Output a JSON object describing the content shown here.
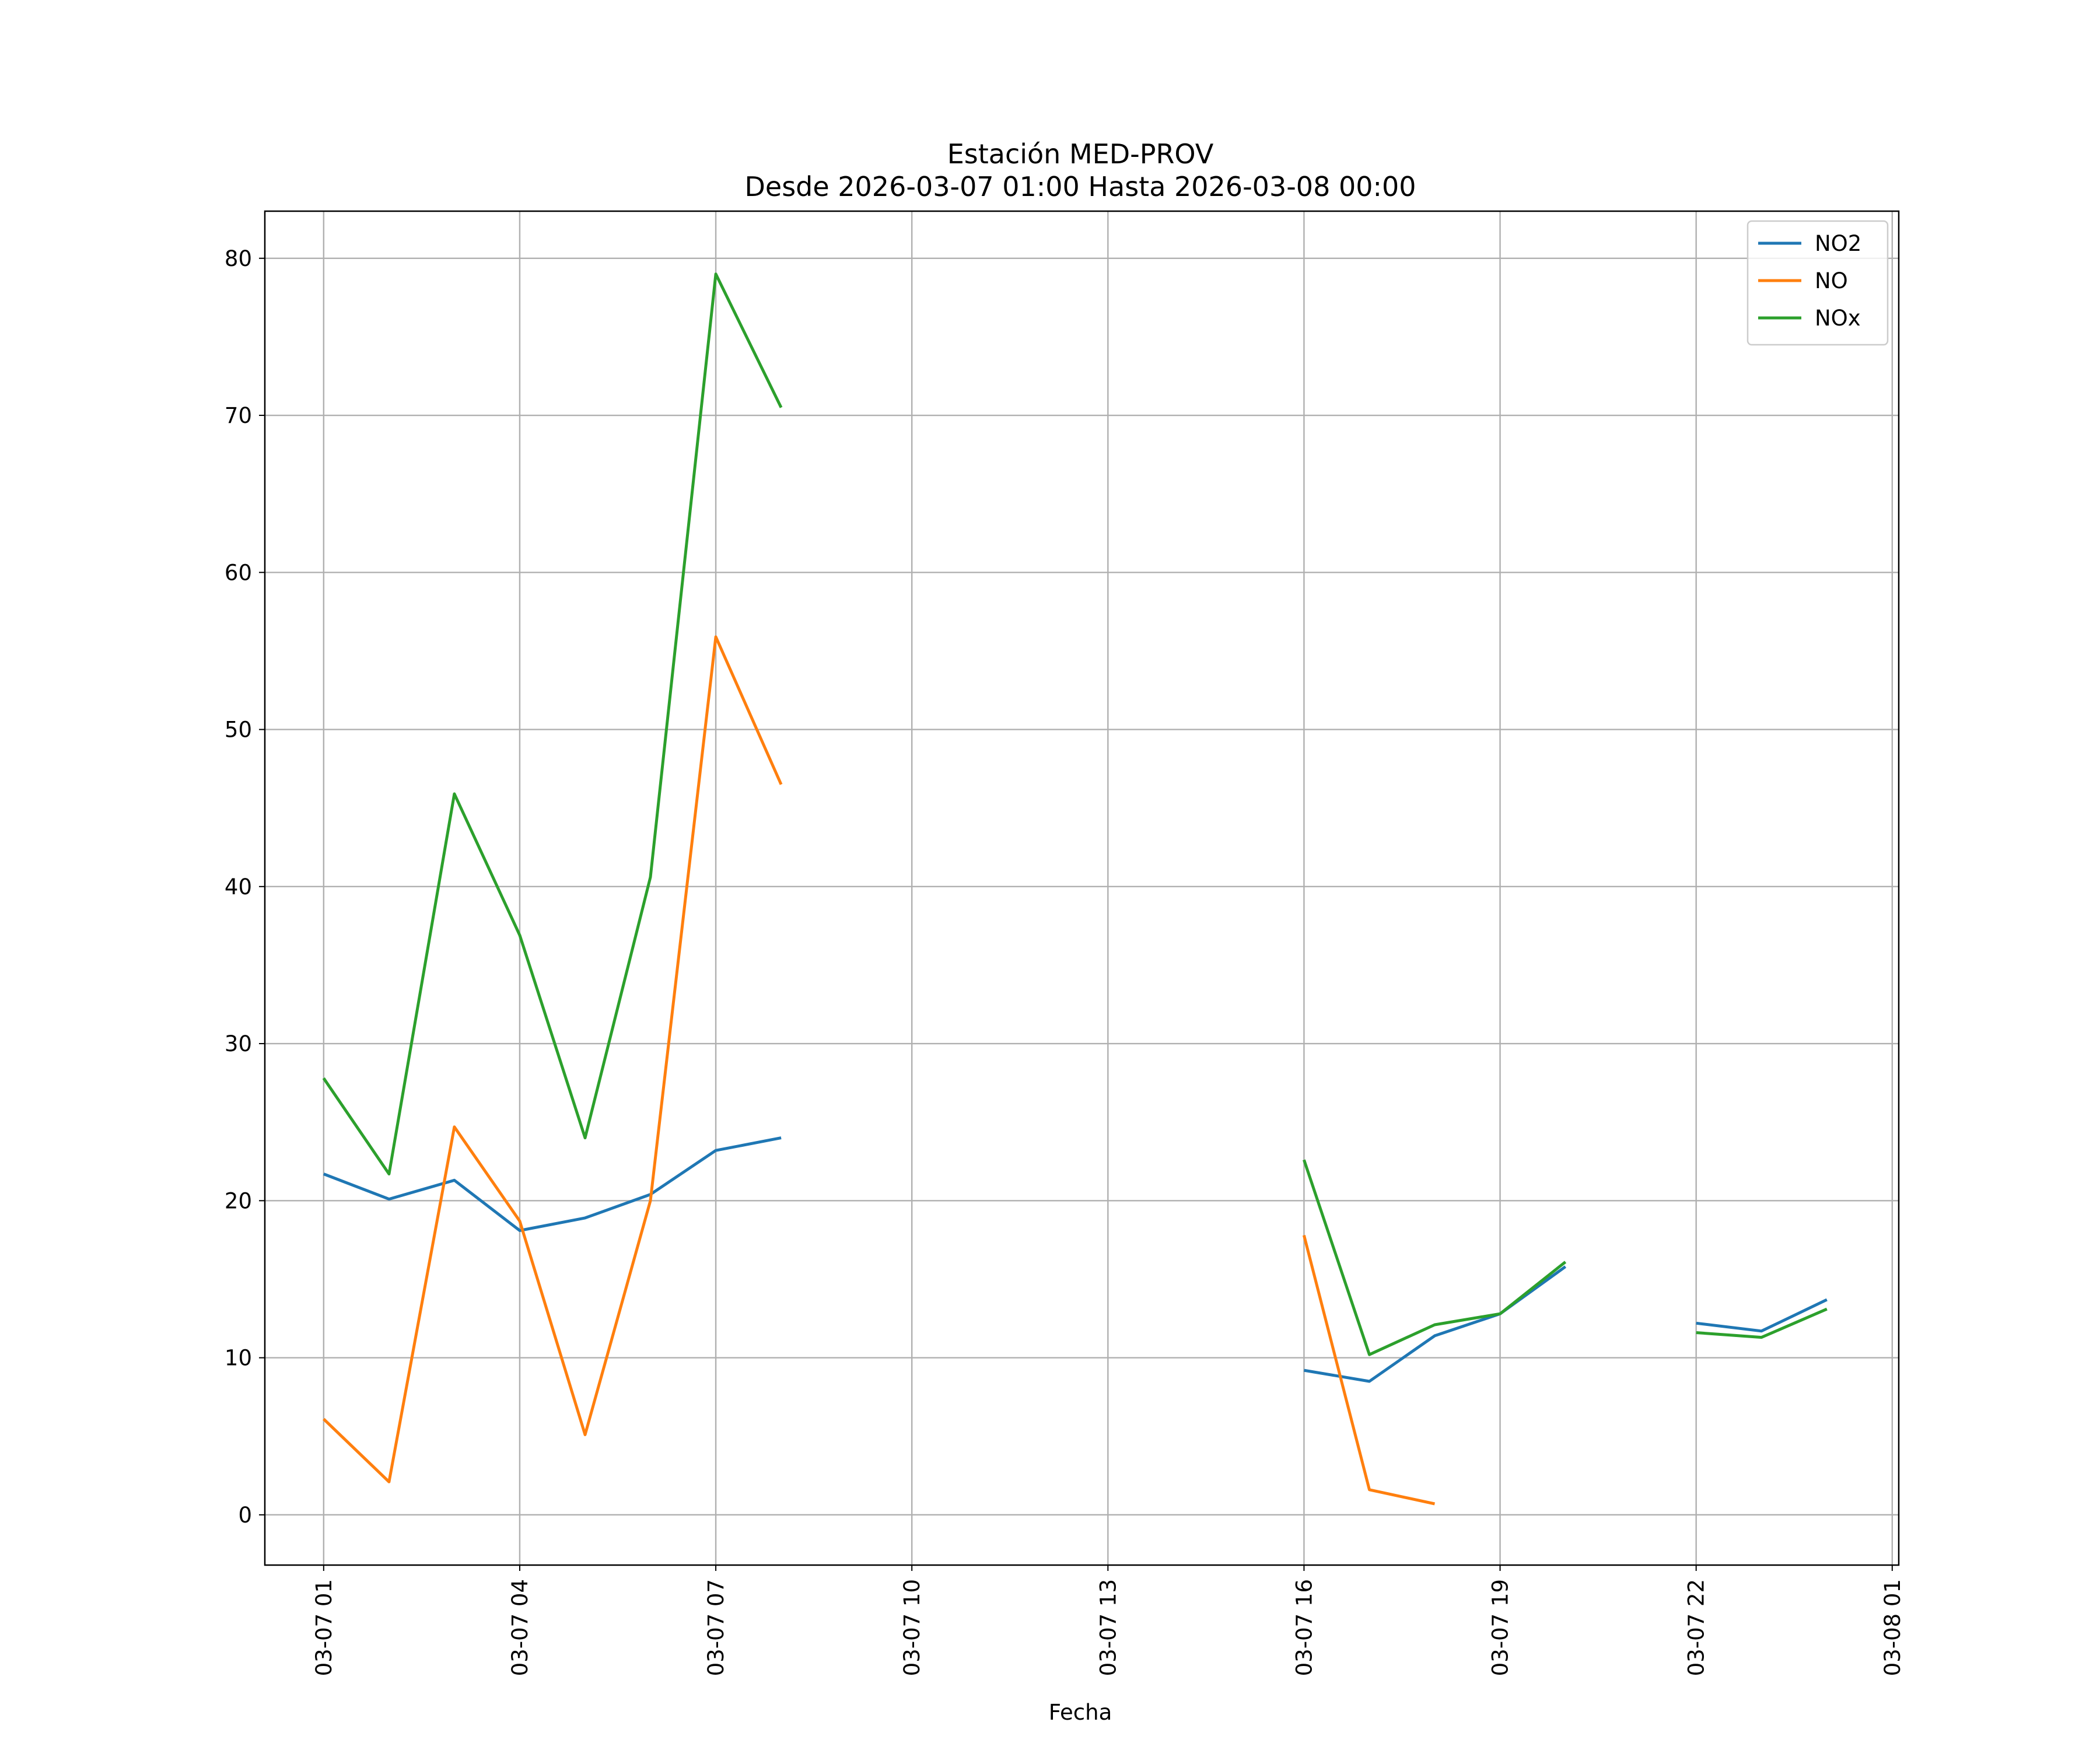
{
  "chart_data": {
    "type": "line",
    "title": "Estación MED-PROV",
    "subtitle": "Desde 2026-03-07 01:00 Hasta 2026-03-08 00:00",
    "xlabel": "Fecha",
    "ylabel": "",
    "x": [
      "03-07 01:00",
      "03-07 02:00",
      "03-07 03:00",
      "03-07 04:00",
      "03-07 05:00",
      "03-07 06:00",
      "03-07 07:00",
      "03-07 08:00",
      "03-07 09:00",
      "03-07 10:00",
      "03-07 11:00",
      "03-07 12:00",
      "03-07 13:00",
      "03-07 14:00",
      "03-07 15:00",
      "03-07 16:00",
      "03-07 17:00",
      "03-07 18:00",
      "03-07 19:00",
      "03-07 20:00",
      "03-07 21:00",
      "03-07 22:00",
      "03-07 23:00",
      "03-08 00:00"
    ],
    "xlim": [
      "03-07 00:06",
      "03-08 01:06"
    ],
    "ylim": [
      -3.2,
      83
    ],
    "x_ticks": [
      "03-07 01",
      "03-07 04",
      "03-07 07",
      "03-07 10",
      "03-07 13",
      "03-07 16",
      "03-07 19",
      "03-07 22",
      "03-08 01"
    ],
    "y_ticks": [
      0,
      10,
      20,
      30,
      40,
      50,
      60,
      70,
      80
    ],
    "grid": true,
    "legend": "top-right",
    "series": [
      {
        "name": "NO2",
        "color": "#1f77b4",
        "values": [
          21.7,
          20.1,
          21.3,
          18.1,
          18.9,
          20.4,
          23.2,
          24.0,
          null,
          null,
          null,
          null,
          null,
          null,
          null,
          9.2,
          8.5,
          11.4,
          12.8,
          15.8,
          null,
          12.2,
          11.7,
          13.7
        ]
      },
      {
        "name": "NO",
        "color": "#ff7f0e",
        "values": [
          6.1,
          2.1,
          24.7,
          18.7,
          5.1,
          20.0,
          55.9,
          46.5,
          null,
          null,
          null,
          null,
          null,
          null,
          null,
          17.8,
          1.6,
          0.7,
          null,
          null,
          null,
          null,
          null,
          null
        ]
      },
      {
        "name": "NOx",
        "color": "#2ca02c",
        "values": [
          27.8,
          21.7,
          45.9,
          36.9,
          24.0,
          40.6,
          79.0,
          70.5,
          null,
          null,
          null,
          null,
          null,
          null,
          null,
          22.6,
          10.2,
          12.1,
          12.8,
          16.1,
          null,
          11.6,
          11.3,
          13.1
        ]
      }
    ]
  }
}
